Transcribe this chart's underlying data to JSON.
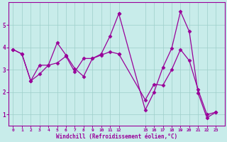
{
  "bg_color": "#c8ecea",
  "line_color": "#990099",
  "grid_color": "#9ecfca",
  "xlabel": "Windchill (Refroidissement éolien,°C)",
  "line1_x": [
    0,
    1,
    2,
    3,
    4,
    5,
    6,
    7,
    8,
    9,
    10,
    11,
    12,
    15,
    16,
    17,
    18,
    19,
    20,
    21,
    22,
    23
  ],
  "line1_y": [
    3.9,
    3.7,
    2.5,
    2.8,
    3.2,
    4.2,
    3.65,
    3.05,
    2.7,
    3.5,
    3.7,
    4.5,
    5.5,
    1.2,
    2.0,
    3.1,
    3.95,
    5.6,
    4.7,
    1.95,
    0.85,
    1.1
  ],
  "line2_x": [
    0,
    1,
    2,
    3,
    4,
    5,
    6,
    7,
    8,
    9,
    10,
    11,
    12,
    15,
    16,
    17,
    18,
    19,
    20,
    21,
    22,
    23
  ],
  "line2_y": [
    3.9,
    3.7,
    2.5,
    3.2,
    3.2,
    3.3,
    3.6,
    2.9,
    3.5,
    3.5,
    3.65,
    3.8,
    3.7,
    1.65,
    2.35,
    2.3,
    3.0,
    3.9,
    3.4,
    2.1,
    1.0,
    1.1
  ],
  "xtick_labels": [
    "0",
    "1",
    "2",
    "3",
    "4",
    "5",
    "6",
    "7",
    "8",
    "9",
    "10",
    "11",
    "12",
    "15",
    "16",
    "17",
    "18",
    "19",
    "20",
    "21",
    "22",
    "23"
  ],
  "xtick_pos": [
    0,
    1,
    2,
    3,
    4,
    5,
    6,
    7,
    8,
    9,
    10,
    11,
    12,
    15,
    16,
    17,
    18,
    19,
    20,
    21,
    22,
    23
  ],
  "yticks": [
    1,
    2,
    3,
    4,
    5
  ],
  "ylim": [
    0.5,
    6.0
  ],
  "xlim": [
    -0.5,
    24.0
  ],
  "marker": "D",
  "markersize": 2.5
}
